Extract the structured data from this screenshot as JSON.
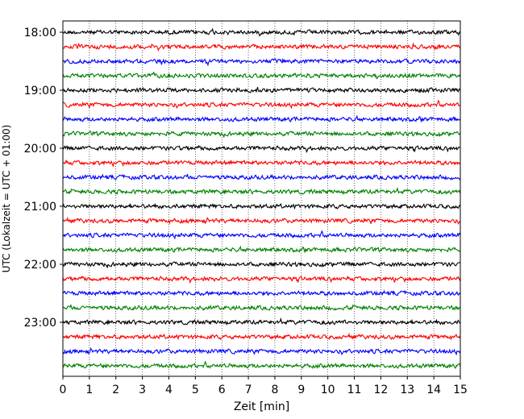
{
  "chart_data": {
    "type": "line",
    "title": "",
    "xlabel": "Zeit  [min]",
    "ylabel": "UTC (Lokalzeit = UTC + 01:00)",
    "xlim": [
      0,
      15
    ],
    "x_ticks": [
      "0",
      "1",
      "2",
      "3",
      "4",
      "5",
      "6",
      "7",
      "8",
      "9",
      "10",
      "11",
      "12",
      "13",
      "14",
      "15"
    ],
    "y_ticks": [
      "18:00",
      "19:00",
      "20:00",
      "21:00",
      "22:00",
      "23:00"
    ],
    "grid": "vertical dotted",
    "trace_interval_minutes": 15,
    "trace_start": "18:00",
    "trace_count": 24,
    "color_cycle": [
      "#000000",
      "#ff0000",
      "#0000ff",
      "#008000"
    ],
    "series": [
      {
        "start": "18:00",
        "color": "#000000"
      },
      {
        "start": "18:15",
        "color": "#ff0000"
      },
      {
        "start": "18:30",
        "color": "#0000ff"
      },
      {
        "start": "18:45",
        "color": "#008000"
      },
      {
        "start": "19:00",
        "color": "#000000"
      },
      {
        "start": "19:15",
        "color": "#ff0000"
      },
      {
        "start": "19:30",
        "color": "#0000ff"
      },
      {
        "start": "19:45",
        "color": "#008000"
      },
      {
        "start": "20:00",
        "color": "#000000"
      },
      {
        "start": "20:15",
        "color": "#ff0000"
      },
      {
        "start": "20:30",
        "color": "#0000ff"
      },
      {
        "start": "20:45",
        "color": "#008000"
      },
      {
        "start": "21:00",
        "color": "#000000"
      },
      {
        "start": "21:15",
        "color": "#ff0000"
      },
      {
        "start": "21:30",
        "color": "#0000ff"
      },
      {
        "start": "21:45",
        "color": "#008000"
      },
      {
        "start": "22:00",
        "color": "#000000"
      },
      {
        "start": "22:15",
        "color": "#ff0000"
      },
      {
        "start": "22:30",
        "color": "#0000ff"
      },
      {
        "start": "22:45",
        "color": "#008000"
      },
      {
        "start": "23:00",
        "color": "#000000"
      },
      {
        "start": "23:15",
        "color": "#ff0000"
      },
      {
        "start": "23:30",
        "color": "#0000ff"
      },
      {
        "start": "23:45",
        "color": "#008000"
      }
    ]
  }
}
